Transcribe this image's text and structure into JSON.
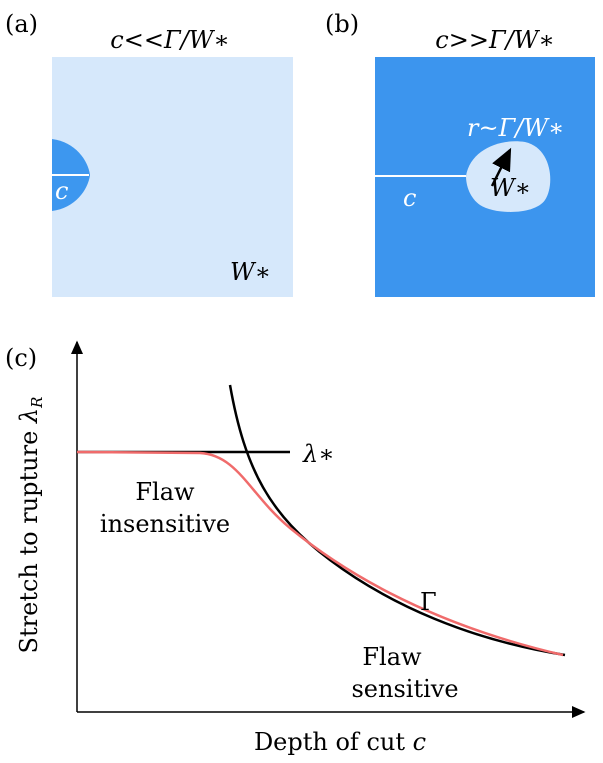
{
  "panel_a": {
    "label": "(a)",
    "title": "c<<Γ/W∗",
    "crack_label": "c",
    "region_label": "W∗"
  },
  "panel_b": {
    "label": "(b)",
    "title": "c>>Γ/W∗",
    "radius_label": "r~Γ/W∗",
    "region_label": "W∗",
    "crack_label": "c"
  },
  "panel_c": {
    "label": "(c)",
    "y_axis_label": {
      "text": "Stretch to rupture ",
      "symbol": "λ",
      "subscript": "R"
    },
    "x_axis_label": {
      "text": "Depth of cut ",
      "symbol": "c"
    },
    "plateau_label": "λ∗",
    "insensitive_label": [
      "Flaw",
      "insensitive"
    ],
    "gamma_label": "Γ",
    "sensitive_label": [
      "Flaw",
      "sensitive"
    ]
  }
}
